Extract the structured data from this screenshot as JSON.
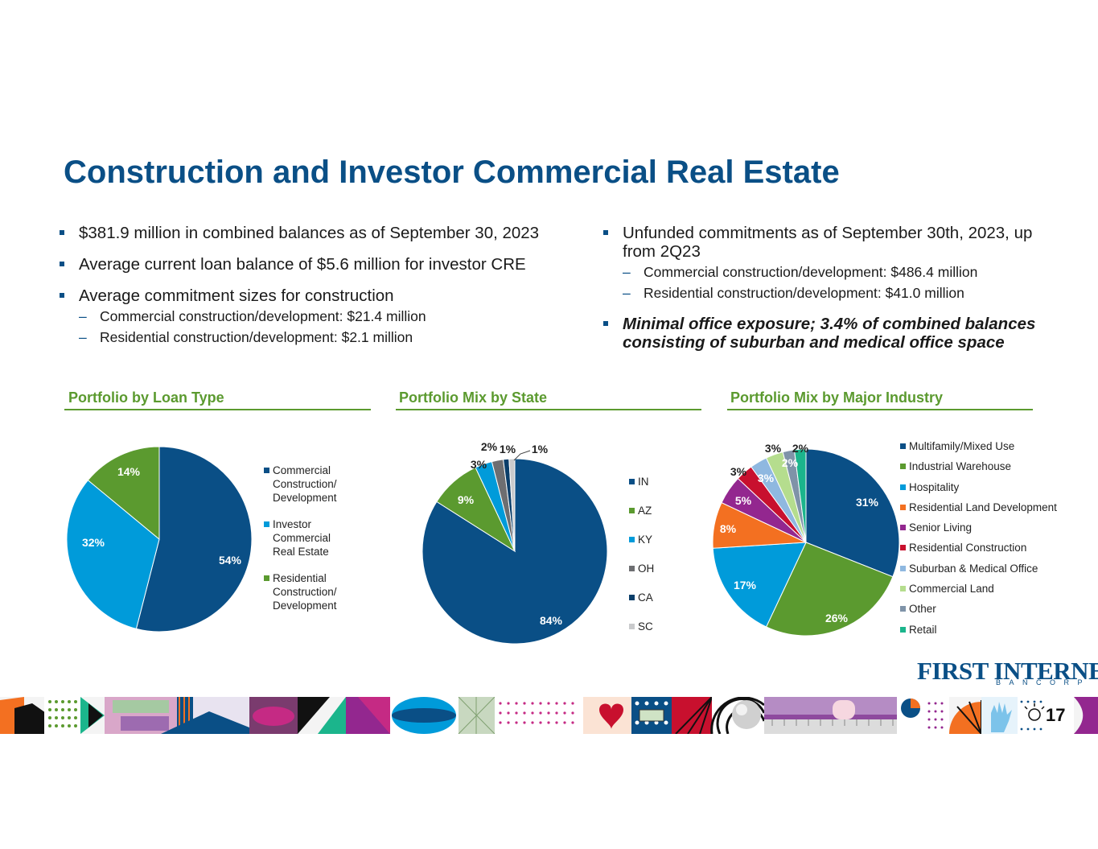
{
  "title": "Construction and Investor Commercial Real Estate",
  "left_bullets": [
    {
      "text": "$381.9 million in combined balances as of September 30, 2023",
      "subs": []
    },
    {
      "text": "Average current loan balance of $5.6 million for investor CRE",
      "subs": []
    },
    {
      "text": "Average commitment sizes for construction",
      "subs": [
        "Commercial construction/development: $21.4 million",
        "Residential construction/development: $2.1 million"
      ]
    }
  ],
  "right_bullets": [
    {
      "text": "Unfunded commitments as of September 30th, 2023, up from 2Q23",
      "subs": [
        "Commercial construction/development: $486.4 million",
        "Residential construction/development: $41.0 million"
      ]
    },
    {
      "text": "Minimal office exposure; 3.4% of combined balances consisting of suburban and medical office space",
      "subs": []
    }
  ],
  "chart_data": [
    {
      "type": "pie",
      "title": "Portfolio by Loan Type",
      "categories": [
        "Commercial Construction/ Development",
        "Investor Commercial Real Estate",
        "Residential Construction/ Development"
      ],
      "legend_lines": [
        [
          "Commercial",
          "Construction/",
          "Development"
        ],
        [
          "Investor",
          "Commercial",
          "Real Estate"
        ],
        [
          "Residential",
          "Construction/",
          "Development"
        ]
      ],
      "values": [
        54,
        32,
        14
      ],
      "labels": [
        "54%",
        "32%",
        "14%"
      ],
      "colors": [
        "#0a4f86",
        "#009bda",
        "#5b9a2f"
      ],
      "label_colors": [
        "#ffffff",
        "#ffffff",
        "#ffffff"
      ],
      "legend": "right"
    },
    {
      "type": "pie",
      "title": "Portfolio Mix by State",
      "categories": [
        "IN",
        "AZ",
        "KY",
        "OH",
        "CA",
        "SC"
      ],
      "values": [
        84,
        9,
        3,
        2,
        1,
        1
      ],
      "labels": [
        "84%",
        "9%",
        "3%",
        "2%",
        "1%",
        "1%"
      ],
      "colors": [
        "#0a4f86",
        "#5b9a2f",
        "#009bda",
        "#6d6e71",
        "#0a3e6a",
        "#c9cacc"
      ],
      "label_colors": [
        "#ffffff",
        "#ffffff",
        "#222222",
        "#222222",
        "#222222",
        "#222222"
      ],
      "legend": "right"
    },
    {
      "type": "pie",
      "title": "Portfolio Mix by Major Industry",
      "categories": [
        "Multifamily/Mixed Use",
        "Industrial Warehouse",
        "Hospitality",
        "Residential Land Development",
        "Senior Living",
        "Residential Construction",
        "Suburban & Medical Office",
        "Commercial Land",
        "Other",
        "Retail"
      ],
      "values": [
        31,
        26,
        17,
        8,
        5,
        3,
        3,
        3,
        2,
        2
      ],
      "labels": [
        "31%",
        "26%",
        "17%",
        "8%",
        "5%",
        "3%",
        "3%",
        "3%",
        "2%",
        "2%"
      ],
      "colors": [
        "#0a4f86",
        "#5b9a2f",
        "#009bda",
        "#f37021",
        "#93278f",
        "#c8102e",
        "#8fb8e0",
        "#b5dd8e",
        "#7f93a8",
        "#1bb58c"
      ],
      "label_colors": [
        "#ffffff",
        "#ffffff",
        "#ffffff",
        "#ffffff",
        "#ffffff",
        "#222222",
        "#ffffff",
        "#222222",
        "#ffffff",
        "#222222"
      ],
      "legend": "right"
    }
  ],
  "logo": {
    "brand": "FIRST INTERNET",
    "sub": "BANCORP"
  },
  "page_number": "17"
}
